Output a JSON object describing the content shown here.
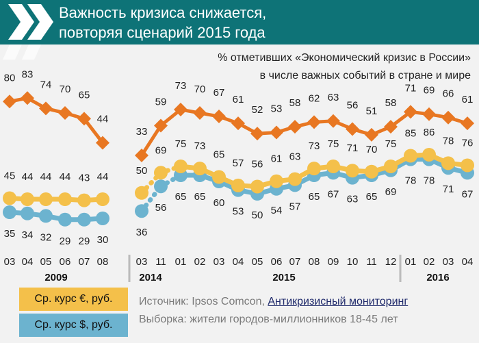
{
  "header": {
    "title_line1": "Важность кризиса снижается,",
    "title_line2": "повторяя сценарий 2015 года",
    "background": "#0e7377"
  },
  "subtitle": {
    "line1": "% отметивших «Экономический кризис в России»",
    "line2": "в числе важных событий в стране и мире"
  },
  "legend": {
    "euro": "Ср. курс €, руб.",
    "dollar": "Ср. курс $, руб."
  },
  "source": {
    "prefix": "Источник: Ipsos Comcon, ",
    "link": "Антикризисный мониторинг",
    "sample": "Выборка: жители городов-миллионников 18-45 лет"
  },
  "chart_data": [
    {
      "type": "line",
      "panel": "2009",
      "categories": [
        "03",
        "04",
        "05",
        "06",
        "07",
        "08"
      ],
      "year_label": "2009",
      "series": [
        {
          "key": "crisis",
          "color": "#e87722",
          "marker": "diamond",
          "values": [
            80,
            83,
            74,
            70,
            65,
            44
          ]
        },
        {
          "name": "Ср. курс €, руб.",
          "key": "euro",
          "color": "#f4c04a",
          "marker": "circle",
          "values": [
            45,
            44,
            44,
            44,
            43,
            44
          ]
        },
        {
          "name": "Ср. курс $, руб.",
          "key": "dollar",
          "color": "#6cb3cf",
          "marker": "circle",
          "values": [
            35,
            34,
            32,
            29,
            29,
            30
          ]
        }
      ]
    },
    {
      "type": "line",
      "panel": "2014-2016",
      "categories": [
        "03",
        "11",
        "01",
        "02",
        "03",
        "04",
        "05",
        "06",
        "07",
        "08",
        "09",
        "10",
        "11",
        "12",
        "01",
        "02",
        "03",
        "04"
      ],
      "year_labels": [
        {
          "label": "2014",
          "from": 0
        },
        {
          "label": "2015",
          "from": 2
        },
        {
          "label": "2016",
          "from": 14
        }
      ],
      "series": [
        {
          "key": "crisis",
          "color": "#e87722",
          "marker": "diamond",
          "values": [
            33,
            59,
            73,
            70,
            67,
            61,
            52,
            53,
            58,
            62,
            63,
            56,
            51,
            58,
            71,
            69,
            66,
            61
          ]
        },
        {
          "name": "Ср. курс €, руб.",
          "key": "euro",
          "color": "#f4c04a",
          "marker": "circle",
          "values": [
            50,
            69,
            75,
            73,
            65,
            57,
            56,
            61,
            63,
            73,
            75,
            71,
            70,
            75,
            85,
            86,
            78,
            76
          ]
        },
        {
          "name": "Ср. курс $, руб.",
          "key": "dollar",
          "color": "#6cb3cf",
          "marker": "circle",
          "values": [
            36,
            56,
            65,
            65,
            60,
            53,
            50,
            54,
            57,
            65,
            67,
            63,
            65,
            69,
            78,
            78,
            71,
            67
          ]
        }
      ]
    }
  ]
}
